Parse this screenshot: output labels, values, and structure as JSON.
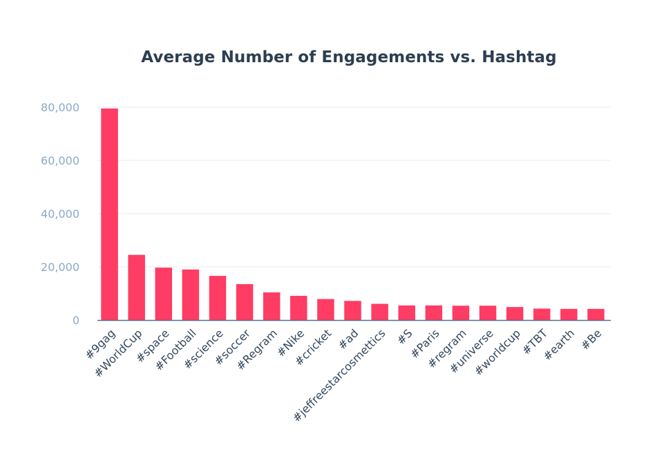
{
  "chart_data": {
    "type": "bar",
    "title": "Average Number of Engagements vs. Hashtag",
    "xlabel": "",
    "ylabel": "",
    "ylim": [
      0,
      80000
    ],
    "yticks": [
      0,
      20000,
      40000,
      60000,
      80000
    ],
    "ytick_labels": [
      "0",
      "20,000",
      "40,000",
      "60,000",
      "80,000"
    ],
    "categories": [
      "#9gag",
      "#WorldCup",
      "#space",
      "#Football",
      "#science",
      "#soccer",
      "#Regram",
      "#Nike",
      "#cricket",
      "#ad",
      "#jeffreestarcosmettics",
      "#S",
      "#Paris",
      "#regram",
      "#universe",
      "#worldcup",
      "#TBT",
      "#earth",
      "#Be"
    ],
    "values": [
      79500,
      24500,
      19700,
      19000,
      16600,
      13500,
      10400,
      9100,
      7900,
      7200,
      6100,
      5500,
      5500,
      5400,
      5400,
      4900,
      4300,
      4200,
      4200
    ],
    "bar_color": "#ff3c64",
    "grid": true,
    "legend": "none"
  }
}
